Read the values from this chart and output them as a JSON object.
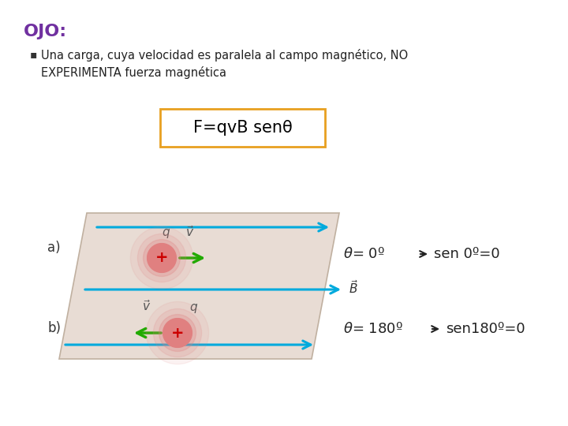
{
  "bg_color": "#ffffff",
  "ojo_text": "OJO:",
  "ojo_color": "#7030a0",
  "bullet_text": "Una carga, cuya velocidad es paralela al campo magnético, NO\nEXPERIMENTA fuerza magnética",
  "formula_text": "F=qvB senθ",
  "formula_box_color": "#e8a020",
  "formula_text_color": "#000000",
  "formula_bg": "#ffffff",
  "label_a": "a)",
  "label_b": "b)",
  "theta_a": "θ= 0º ⇒ sen 0º=0",
  "theta_b": "θ= 180º ⇓ sen180º=0",
  "parallelogram_fill": "#e8dcd4",
  "parallelogram_edge": "#c0b0a0",
  "blue_arrow_color": "#00aadd",
  "green_arrow_color": "#22aa00",
  "charge_glow": "#e08080",
  "charge_plus_color": "#cc0000"
}
